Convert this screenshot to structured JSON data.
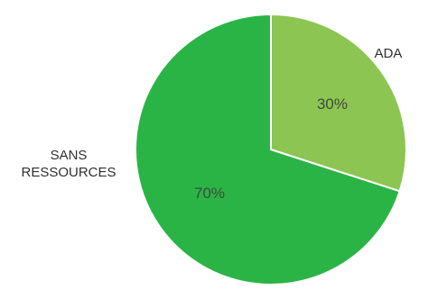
{
  "chart_data": {
    "type": "pie",
    "title": "",
    "slices": [
      {
        "label": "ADA",
        "value": 30,
        "value_label": "30%",
        "color": "#8cc552"
      },
      {
        "label": "SANS\nRESSOURCES",
        "value": 70,
        "value_label": "70%",
        "color": "#2bb446"
      }
    ],
    "start_angle_deg": 0,
    "direction": "clockwise",
    "legend": "none"
  }
}
